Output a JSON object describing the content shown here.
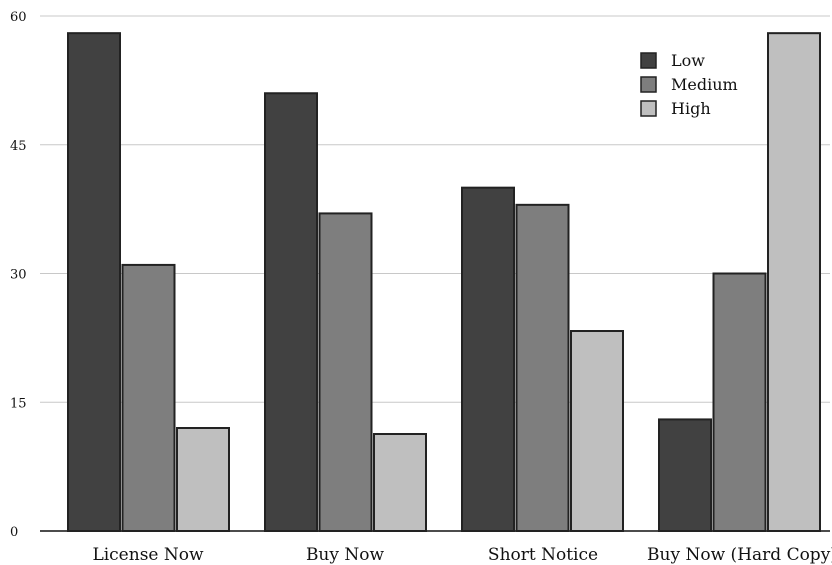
{
  "chart_data": {
    "type": "bar",
    "categories": [
      "License Now",
      "Buy Now",
      "Short Notice",
      "Buy Now (Hard Copy)"
    ],
    "series": [
      {
        "name": "Low",
        "values": [
          58,
          51,
          40,
          13
        ],
        "color": "#414141"
      },
      {
        "name": "Medium",
        "values": [
          31,
          37,
          38,
          30
        ],
        "color": "#7e7e7e"
      },
      {
        "name": "High",
        "values": [
          12,
          11.3,
          23.3,
          58
        ],
        "color": "#bfbfbf"
      }
    ],
    "yticks": [
      "0",
      "15",
      "30",
      "45",
      "60"
    ],
    "ylim": [
      0,
      60
    ],
    "grid": true,
    "legend_position": "top-right",
    "title": "",
    "xlabel": "",
    "ylabel": ""
  }
}
